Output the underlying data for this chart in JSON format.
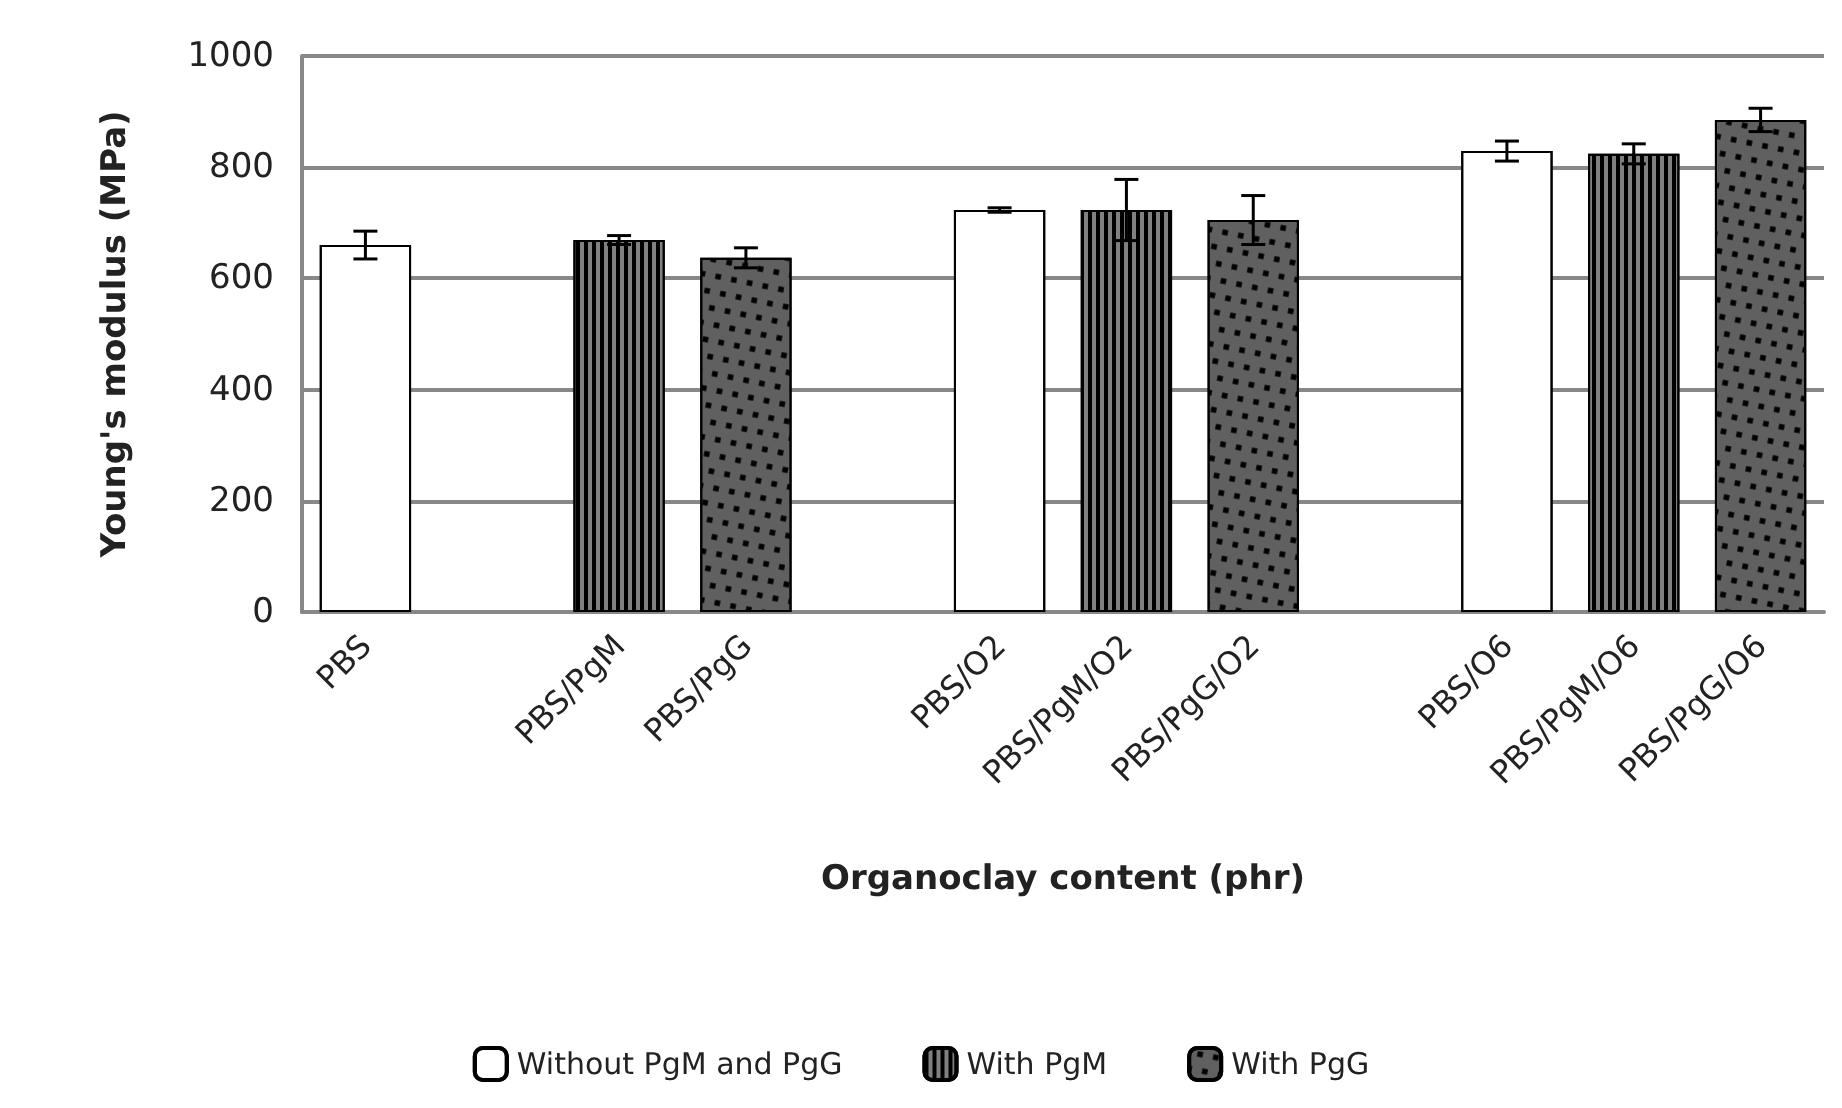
{
  "chart_data": {
    "type": "bar",
    "stacked": true,
    "xlabel": "Organoclay content (phr)",
    "ylabel": "Young's modulus (MPa)",
    "categories": [
      "PBS",
      null,
      "PBS/PgM",
      "PBS/PgG",
      null,
      "PBS/O2",
      "PBS/PgM/O2",
      "PBS/PgG/O2",
      null,
      "PBS/O6",
      "PBS/PgM/O6",
      "PBS/PgG/O6"
    ],
    "series": [
      {
        "name": "Without PgM and PgG",
        "color": "#ffffff",
        "values": [
          660,
          null,
          null,
          null,
          null,
          723,
          null,
          null,
          null,
          829,
          null,
          null
        ],
        "errors": [
          25,
          null,
          null,
          null,
          null,
          4,
          null,
          null,
          null,
          18,
          null,
          null
        ]
      },
      {
        "name": "With PgM",
        "color": "#808080",
        "values": [
          null,
          null,
          669,
          null,
          null,
          null,
          723,
          null,
          null,
          null,
          824,
          null
        ],
        "errors": [
          null,
          null,
          8,
          null,
          null,
          null,
          55,
          null,
          null,
          null,
          18,
          null
        ]
      },
      {
        "name": "With PgG",
        "color": "#606060",
        "values": [
          null,
          null,
          null,
          637,
          null,
          null,
          null,
          705,
          null,
          null,
          null,
          885
        ],
        "errors": [
          null,
          null,
          null,
          18,
          null,
          null,
          null,
          44,
          null,
          null,
          null,
          21
        ]
      }
    ],
    "ylim": [
      0,
      1000
    ],
    "yticks": [
      0,
      200,
      400,
      600,
      800,
      1000
    ],
    "grid": "y",
    "legend": "bottom"
  }
}
